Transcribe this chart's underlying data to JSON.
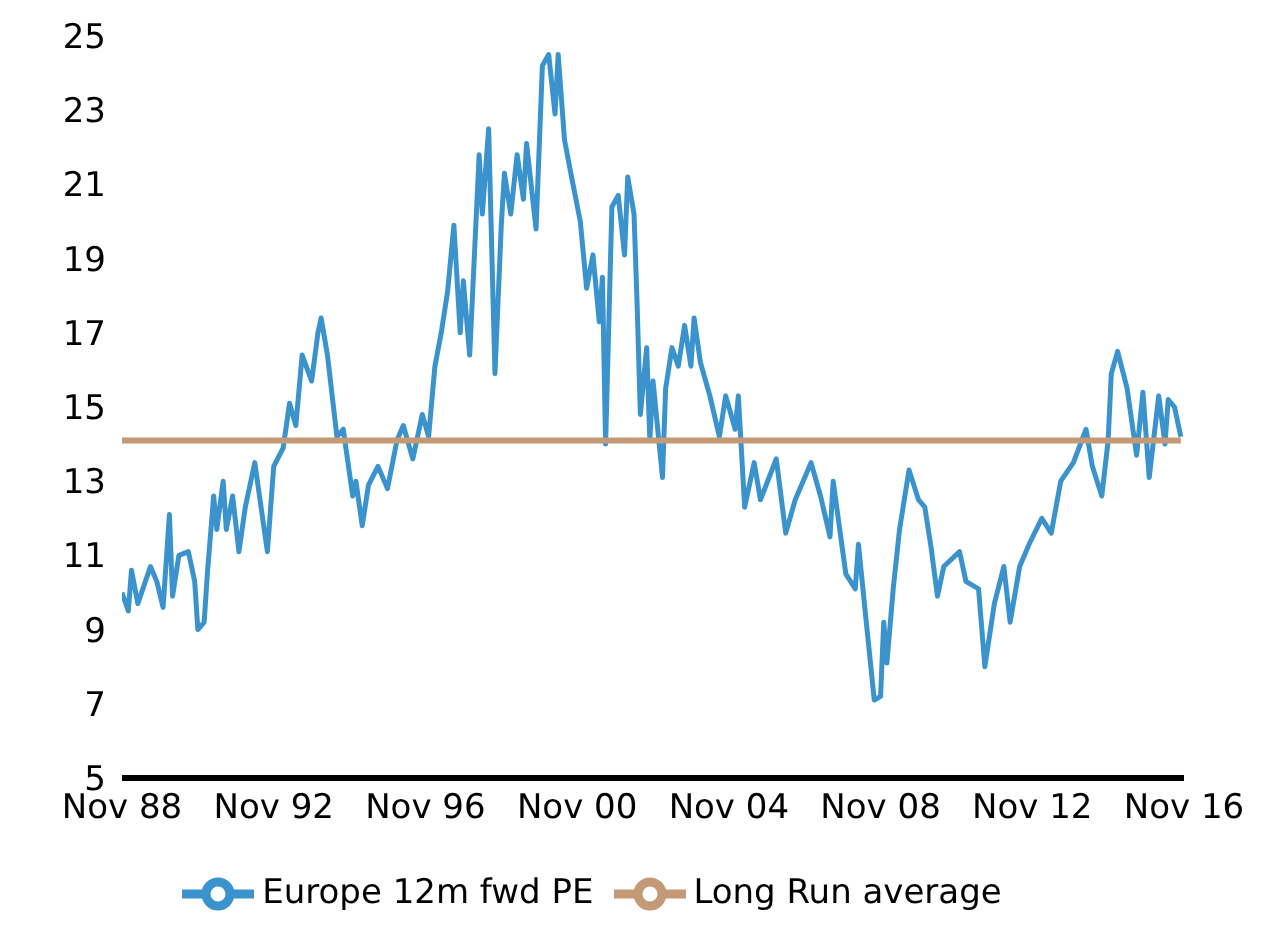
{
  "chart_data": {
    "type": "line",
    "xlim": [
      "1988-11",
      "2016-11"
    ],
    "xticks": [
      {
        "value": "1988-11",
        "label": "Nov 88"
      },
      {
        "value": "1992-11",
        "label": "Nov 92"
      },
      {
        "value": "1996-11",
        "label": "Nov 96"
      },
      {
        "value": "2000-11",
        "label": "Nov 00"
      },
      {
        "value": "2004-11",
        "label": "Nov 04"
      },
      {
        "value": "2008-11",
        "label": "Nov 08"
      },
      {
        "value": "2012-11",
        "label": "Nov 12"
      },
      {
        "value": "2016-11",
        "label": "Nov 16"
      }
    ],
    "ylim": [
      5,
      25
    ],
    "yticks": [
      5,
      7,
      9,
      11,
      13,
      15,
      17,
      19,
      21,
      23,
      25
    ],
    "grid": false,
    "legend": "bottom",
    "marker": "none",
    "series": [
      {
        "name": "Europe 12m fwd PE",
        "color": "#3a93cc",
        "x": [
          "1988-11",
          "1989-01",
          "1989-02",
          "1989-04",
          "1989-06",
          "1989-08",
          "1989-10",
          "1989-12",
          "1990-02",
          "1990-03",
          "1990-05",
          "1990-08",
          "1990-10",
          "1990-11",
          "1991-01",
          "1991-02",
          "1991-04",
          "1991-05",
          "1991-07",
          "1991-08",
          "1991-10",
          "1991-12",
          "1992-02",
          "1992-05",
          "1992-07",
          "1992-09",
          "1992-11",
          "1993-02",
          "1993-04",
          "1993-06",
          "1993-08",
          "1993-11",
          "1994-01",
          "1994-02",
          "1994-04",
          "1994-07",
          "1994-09",
          "1994-12",
          "1995-01",
          "1995-03",
          "1995-05",
          "1995-08",
          "1995-11",
          "1996-02",
          "1996-04",
          "1996-07",
          "1996-10",
          "1996-12",
          "1997-02",
          "1997-04",
          "1997-06",
          "1997-08",
          "1997-10",
          "1997-11",
          "1998-01",
          "1998-04",
          "1998-05",
          "1998-07",
          "1998-09",
          "1998-11",
          "1998-12",
          "1999-02",
          "1999-04",
          "1999-06",
          "1999-07",
          "1999-10",
          "1999-12",
          "2000-02",
          "2000-04",
          "2000-05",
          "2000-07",
          "2000-09",
          "2000-12",
          "2001-02",
          "2001-04",
          "2001-06",
          "2001-07",
          "2001-08",
          "2001-10",
          "2001-12",
          "2002-02",
          "2002-03",
          "2002-05",
          "2002-06",
          "2002-07",
          "2002-09",
          "2002-10",
          "2002-11",
          "2003-02",
          "2003-03",
          "2003-05",
          "2003-07",
          "2003-09",
          "2003-11",
          "2003-12",
          "2004-02",
          "2004-05",
          "2004-08",
          "2004-10",
          "2005-01",
          "2005-02",
          "2005-04",
          "2005-07",
          "2005-09",
          "2006-02",
          "2006-05",
          "2006-08",
          "2007-01",
          "2007-04",
          "2007-07",
          "2007-08",
          "2007-12",
          "2008-03",
          "2008-04",
          "2008-06",
          "2008-09",
          "2008-11",
          "2008-12",
          "2009-01",
          "2009-03",
          "2009-05",
          "2009-08",
          "2009-11",
          "2010-01",
          "2010-03",
          "2010-05",
          "2010-07",
          "2010-12",
          "2011-02",
          "2011-06",
          "2011-08",
          "2011-11",
          "2012-02",
          "2012-04",
          "2012-07",
          "2012-10",
          "2013-02",
          "2013-05",
          "2013-08",
          "2013-12",
          "2014-04",
          "2014-06",
          "2014-09",
          "2014-11",
          "2014-12",
          "2015-02",
          "2015-05",
          "2015-08",
          "2015-10",
          "2015-12",
          "2016-03",
          "2016-05",
          "2016-06",
          "2016-08",
          "2016-10"
        ],
        "values": [
          10.0,
          9.5,
          10.6,
          9.7,
          10.2,
          10.7,
          10.3,
          9.6,
          12.1,
          9.9,
          11.0,
          11.1,
          10.3,
          9.0,
          9.2,
          10.5,
          12.6,
          11.7,
          13.0,
          11.7,
          12.6,
          11.1,
          12.3,
          13.5,
          12.3,
          11.1,
          13.4,
          13.9,
          15.1,
          14.5,
          16.4,
          15.7,
          17.0,
          17.4,
          16.4,
          14.2,
          14.4,
          12.6,
          13.0,
          11.8,
          12.9,
          13.4,
          12.8,
          14.1,
          14.5,
          13.6,
          14.8,
          14.2,
          16.1,
          17.0,
          18.1,
          19.9,
          17.0,
          18.4,
          16.4,
          21.8,
          20.2,
          22.5,
          15.9,
          19.9,
          21.3,
          20.2,
          21.8,
          20.6,
          22.1,
          19.8,
          24.2,
          24.5,
          22.9,
          24.5,
          22.2,
          21.3,
          20.0,
          18.2,
          19.1,
          17.3,
          18.5,
          14.0,
          20.4,
          20.7,
          19.1,
          21.2,
          20.2,
          17.7,
          14.8,
          16.6,
          14.1,
          15.7,
          13.1,
          15.5,
          16.6,
          16.1,
          17.2,
          16.1,
          17.4,
          16.2,
          15.3,
          14.2,
          15.3,
          14.4,
          15.3,
          12.3,
          13.5,
          12.5,
          13.6,
          11.6,
          12.5,
          13.5,
          12.6,
          11.5,
          13.0,
          10.5,
          10.1,
          11.3,
          9.6,
          7.1,
          7.2,
          9.2,
          8.1,
          10.1,
          11.7,
          13.3,
          12.5,
          12.3,
          11.2,
          9.9,
          10.7,
          11.1,
          10.3,
          10.1,
          8.0,
          9.7,
          10.7,
          9.2,
          10.7,
          11.3,
          12.0,
          11.6,
          13.0,
          13.5,
          14.4,
          13.4,
          12.6,
          14.1,
          15.9,
          16.5,
          15.5,
          13.7,
          15.4,
          13.1,
          15.3,
          14.0,
          15.2,
          15.0,
          14.2
        ]
      },
      {
        "name": "Long Run average",
        "color": "#c39a75",
        "x": [
          "1988-11",
          "2016-10"
        ],
        "values": [
          14.1,
          14.1
        ]
      }
    ]
  }
}
